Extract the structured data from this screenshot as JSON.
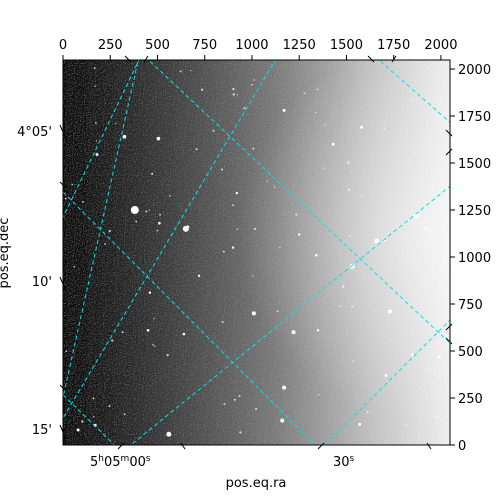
{
  "chart_data": {
    "type": "heatmap",
    "title": "",
    "xlabel": "pos.eq.ra",
    "ylabel": "pos.eq.dec",
    "pixel_axes": {
      "x_ticks": [
        0,
        250,
        500,
        750,
        1000,
        1250,
        1500,
        1750,
        2000
      ],
      "y_ticks": [
        0,
        250,
        500,
        750,
        1000,
        1250,
        1500,
        1750,
        2000
      ],
      "xlim": [
        0,
        2048
      ],
      "ylim": [
        0,
        2048
      ]
    },
    "world_axes": {
      "ra_tick_labels": [
        {
          "label": "5h05m00s",
          "parts": [
            "5",
            "h",
            "05",
            "m",
            "00",
            "s"
          ]
        },
        {
          "label": "30s",
          "parts": [
            "30",
            "s"
          ]
        }
      ],
      "dec_tick_labels": [
        "4°05'",
        "10'",
        "15'"
      ]
    },
    "image": {
      "colormap": "gray",
      "gradient": "dark on left, bright on right",
      "grid_color": "#00e5e5",
      "sources": [
        {
          "x": 380,
          "y": 1250,
          "r": 4
        },
        {
          "x": 650,
          "y": 1150,
          "r": 3
        },
        {
          "x": 1870,
          "y": 1220,
          "r": 3
        },
        {
          "x": 1660,
          "y": 1085,
          "r": 2.5
        },
        {
          "x": 1530,
          "y": 950,
          "r": 2.5
        },
        {
          "x": 1010,
          "y": 700,
          "r": 2
        },
        {
          "x": 1220,
          "y": 600,
          "r": 2
        },
        {
          "x": 1170,
          "y": 305,
          "r": 2
        },
        {
          "x": 560,
          "y": 57,
          "r": 2.5
        },
        {
          "x": 1160,
          "y": 130,
          "r": 2
        },
        {
          "x": 1730,
          "y": 710,
          "r": 2
        },
        {
          "x": 325,
          "y": 1640,
          "r": 1.8
        },
        {
          "x": 505,
          "y": 1630,
          "r": 1.8
        },
        {
          "x": 180,
          "y": 1545,
          "r": 1.5
        },
        {
          "x": 1430,
          "y": 1600,
          "r": 1.5
        },
        {
          "x": 1580,
          "y": 1690,
          "r": 1.5
        },
        {
          "x": 1170,
          "y": 1780,
          "r": 1.5
        },
        {
          "x": 660,
          "y": 1160,
          "r": 1.5
        },
        {
          "x": 510,
          "y": 1180,
          "r": 1.3
        },
        {
          "x": 1340,
          "y": 1010,
          "r": 1.3
        },
        {
          "x": 1700,
          "y": 1090,
          "r": 1.5
        },
        {
          "x": 1920,
          "y": 1150,
          "r": 1.3
        },
        {
          "x": 1710,
          "y": 370,
          "r": 1.5
        },
        {
          "x": 1570,
          "y": 110,
          "r": 1.5
        },
        {
          "x": 1850,
          "y": 480,
          "r": 1.5
        },
        {
          "x": 1990,
          "y": 470,
          "r": 1.5
        },
        {
          "x": 450,
          "y": 610,
          "r": 1.3
        },
        {
          "x": 640,
          "y": 590,
          "r": 1.3
        },
        {
          "x": 80,
          "y": 80,
          "r": 1.5
        },
        {
          "x": 170,
          "y": 105,
          "r": 1.5
        },
        {
          "x": 900,
          "y": 1050,
          "r": 1.2
        },
        {
          "x": 1250,
          "y": 1120,
          "r": 1.2
        },
        {
          "x": 920,
          "y": 1340,
          "r": 1.2
        },
        {
          "x": 720,
          "y": 900,
          "r": 1.2
        },
        {
          "x": 460,
          "y": 810,
          "r": 1.2
        },
        {
          "x": 1350,
          "y": 610,
          "r": 1.2
        }
      ]
    }
  }
}
